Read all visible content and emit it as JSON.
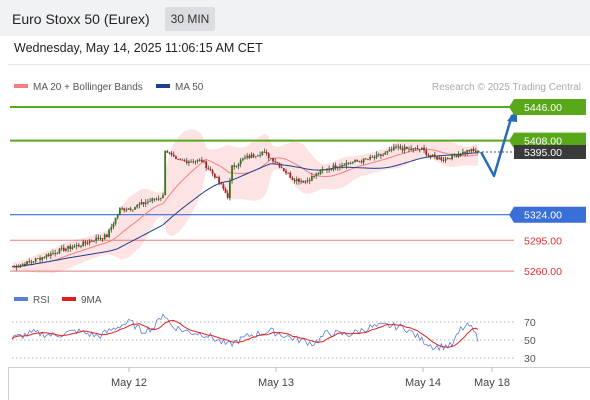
{
  "header": {
    "title": "Euro Stoxx 50 (Eurex)",
    "interval": "30 MIN",
    "datetime": "Wednesday, May 14, 2025 11:06:15 AM CET"
  },
  "colors": {
    "support_blue": "#3a6fd8",
    "resistance_green": "#58a81a",
    "level_red": "#e87c7c",
    "ma50": "#1f3f8f",
    "ma20": "#f28080",
    "bollinger_fill": "#fde0e0",
    "rsi": "#5b7fd6",
    "rsi_ma": "#e02020",
    "candle_up": "#2f7a1a",
    "candle_down": "#b01e1e",
    "arrow": "#2a6bb8",
    "last_price_bg": "#3a3a3a"
  },
  "chart_data": [
    {
      "type": "candlestick",
      "legend": [
        {
          "name": "MA 20 + Bollinger Bands",
          "color": "#f28080"
        },
        {
          "name": "MA 50",
          "color": "#1f3f8f"
        }
      ],
      "legend_position": "top-left",
      "watermark": "Research © 2025 Trading Central",
      "ylim": [
        5250,
        5454
      ],
      "levels": [
        {
          "value": 5446.0,
          "label": "5446.00",
          "kind": "resistance"
        },
        {
          "value": 5408.0,
          "label": "5408.00",
          "kind": "resistance"
        },
        {
          "value": 5395.0,
          "label": "5395.00",
          "kind": "last"
        },
        {
          "value": 5324.0,
          "label": "5324.00",
          "kind": "support"
        },
        {
          "value": 5295.0,
          "label": "5295.00",
          "kind": "minor"
        },
        {
          "value": 5260.0,
          "label": "5260.00",
          "kind": "minor"
        }
      ],
      "x_ticks": [
        "May 12",
        "May 13",
        "May 14",
        "May 18"
      ],
      "price_anchors": [
        [
          0,
          5265
        ],
        [
          8,
          5270
        ],
        [
          16,
          5278
        ],
        [
          24,
          5285
        ],
        [
          32,
          5290
        ],
        [
          38,
          5296
        ],
        [
          44,
          5300
        ],
        [
          50,
          5330
        ],
        [
          56,
          5332
        ],
        [
          62,
          5338
        ],
        [
          70,
          5345
        ],
        [
          71,
          5398
        ],
        [
          76,
          5385
        ],
        [
          82,
          5385
        ],
        [
          88,
          5385
        ],
        [
          94,
          5368
        ],
        [
          100,
          5345
        ],
        [
          102,
          5378
        ],
        [
          108,
          5388
        ],
        [
          116,
          5395
        ],
        [
          122,
          5385
        ],
        [
          130,
          5365
        ],
        [
          136,
          5362
        ],
        [
          144,
          5374
        ],
        [
          154,
          5382
        ],
        [
          164,
          5386
        ],
        [
          172,
          5392
        ],
        [
          178,
          5400
        ],
        [
          184,
          5398
        ],
        [
          190,
          5398
        ],
        [
          194,
          5390
        ],
        [
          200,
          5387
        ],
        [
          206,
          5392
        ],
        [
          212,
          5397
        ],
        [
          216,
          5395
        ]
      ],
      "projection": [
        [
          5395,
          5368
        ],
        [
          5368,
          5446
        ]
      ]
    },
    {
      "type": "line",
      "legend": [
        {
          "name": "RSI",
          "color": "#5b7fd6"
        },
        {
          "name": "9MA",
          "color": "#e02020"
        }
      ],
      "y_ticks": [
        70,
        50,
        30
      ],
      "ylim": [
        20,
        80
      ],
      "rsi_anchors": [
        [
          0,
          52
        ],
        [
          10,
          58
        ],
        [
          20,
          55
        ],
        [
          30,
          60
        ],
        [
          40,
          54
        ],
        [
          50,
          66
        ],
        [
          55,
          70
        ],
        [
          60,
          60
        ],
        [
          66,
          64
        ],
        [
          70,
          80
        ],
        [
          74,
          66
        ],
        [
          80,
          60
        ],
        [
          90,
          56
        ],
        [
          100,
          44
        ],
        [
          110,
          55
        ],
        [
          120,
          60
        ],
        [
          130,
          52
        ],
        [
          140,
          46
        ],
        [
          146,
          58
        ],
        [
          156,
          56
        ],
        [
          166,
          64
        ],
        [
          174,
          66
        ],
        [
          182,
          64
        ],
        [
          190,
          50
        ],
        [
          196,
          42
        ],
        [
          204,
          44
        ],
        [
          208,
          62
        ],
        [
          212,
          66
        ],
        [
          216,
          52
        ]
      ]
    }
  ]
}
